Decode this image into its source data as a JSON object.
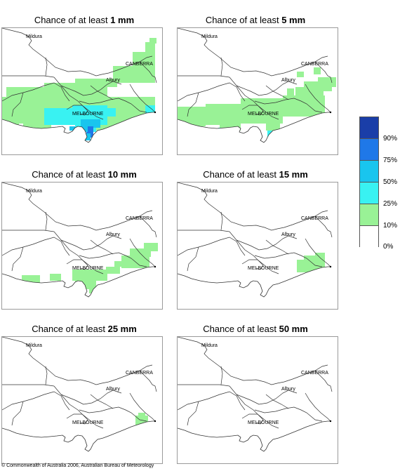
{
  "panels": [
    {
      "prefix": "Chance of at least ",
      "amount": "1 mm"
    },
    {
      "prefix": "Chance of at least ",
      "amount": "5 mm"
    },
    {
      "prefix": "Chance of at least ",
      "amount": "10 mm"
    },
    {
      "prefix": "Chance of at least ",
      "amount": "15 mm"
    },
    {
      "prefix": "Chance of at least ",
      "amount": "25 mm"
    },
    {
      "prefix": "Chance of at least ",
      "amount": "50 mm"
    }
  ],
  "places": {
    "mildura": "Mildura",
    "canberra": "CANBERRA",
    "albury": "Albury",
    "melbourne": "MELBOURNE"
  },
  "legend": {
    "colors": [
      "#1a3ea8",
      "#1f78e8",
      "#19c5ee",
      "#39f2f2",
      "#99f296",
      "#ffffff"
    ],
    "labels": [
      "90%",
      "75%",
      "50%",
      "25%",
      "10%",
      "0%"
    ]
  },
  "copyright": "© Commonwealth of Australia 2006, Australian Bureau of Meteorology"
}
